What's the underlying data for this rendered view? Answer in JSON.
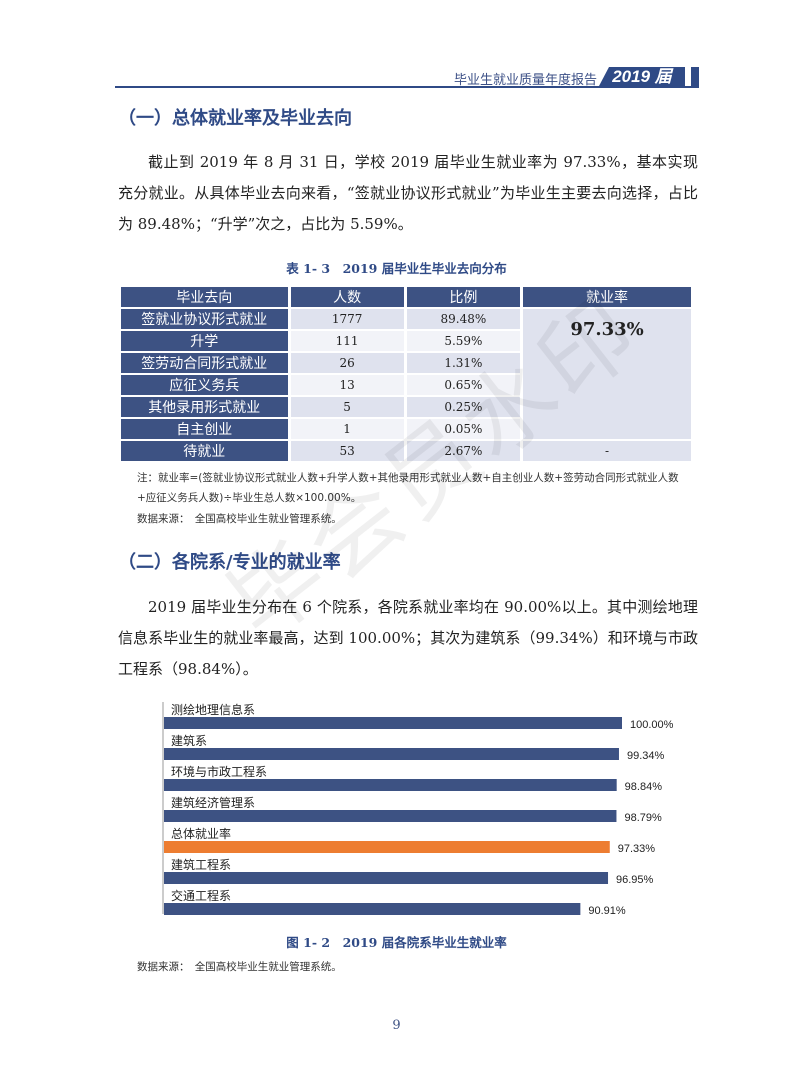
{
  "header": {
    "title": "毕业生就业质量年度报告",
    "year_tab": "2019 届"
  },
  "section1": {
    "heading": "（一）总体就业率及毕业去向",
    "paragraph": "截止到 2019 年 8 月 31 日，学校 2019 届毕业生就业率为 97.33%，基本实现充分就业。从具体毕业去向来看，“签就业协议形式就业”为毕业生主要去向选择，占比为 89.48%；“升学”次之，占比为 5.59%。"
  },
  "table": {
    "caption": "表 1- 3　2019 届毕业生毕业去向分布",
    "headers": [
      "毕业去向",
      "人数",
      "比例",
      "就业率"
    ],
    "rows": [
      {
        "label": "签就业协议形式就业",
        "count": "1777",
        "ratio": "89.48%"
      },
      {
        "label": "升学",
        "count": "111",
        "ratio": "5.59%"
      },
      {
        "label": "签劳动合同形式就业",
        "count": "26",
        "ratio": "1.31%"
      },
      {
        "label": "应征义务兵",
        "count": "13",
        "ratio": "0.65%"
      },
      {
        "label": "其他录用形式就业",
        "count": "5",
        "ratio": "0.25%"
      },
      {
        "label": "自主创业",
        "count": "1",
        "ratio": "0.05%"
      },
      {
        "label": "待就业",
        "count": "53",
        "ratio": "2.67%"
      }
    ],
    "employment_rate": "97.33%",
    "pending_rate": "-",
    "note": "注：就业率=(签就业协议形式就业人数+升学人数+其他录用形式就业人数+自主创业人数+签劳动合同形式就业人数+应征义务兵人数)÷毕业生总人数×100.00%。",
    "source": "数据来源：　全国高校毕业生就业管理系统。"
  },
  "section2": {
    "heading": "（二）各院系/专业的就业率",
    "paragraph": "2019 届毕业生分布在 6 个院系，各院系就业率均在 90.00%以上。其中测绘地理信息系毕业生的就业率最高，达到 100.00%；其次为建筑系（99.34%）和环境与市政工程系（98.84%）。"
  },
  "chart_data": {
    "type": "bar",
    "orientation": "horizontal",
    "categories": [
      "测绘地理信息系",
      "建筑系",
      "环境与市政工程系",
      "建筑经济管理系",
      "总体就业率",
      "建筑工程系",
      "交通工程系"
    ],
    "values": [
      100.0,
      99.34,
      98.84,
      98.79,
      97.33,
      96.95,
      90.91
    ],
    "value_labels": [
      "100.00%",
      "99.34%",
      "98.84%",
      "98.79%",
      "97.33%",
      "96.95%",
      "90.91%"
    ],
    "colors": [
      "#3d5283",
      "#3d5283",
      "#3d5283",
      "#3d5283",
      "#ed7d31",
      "#3d5283",
      "#3d5283"
    ],
    "title": "",
    "xlabel": "",
    "ylabel": ""
  },
  "figure": {
    "caption": "图 1- 2　2019 届各院系毕业生就业率",
    "source": "数据来源：　全国高校毕业生就业管理系统。"
  },
  "watermark": "毕会员水印",
  "page_number": "9"
}
